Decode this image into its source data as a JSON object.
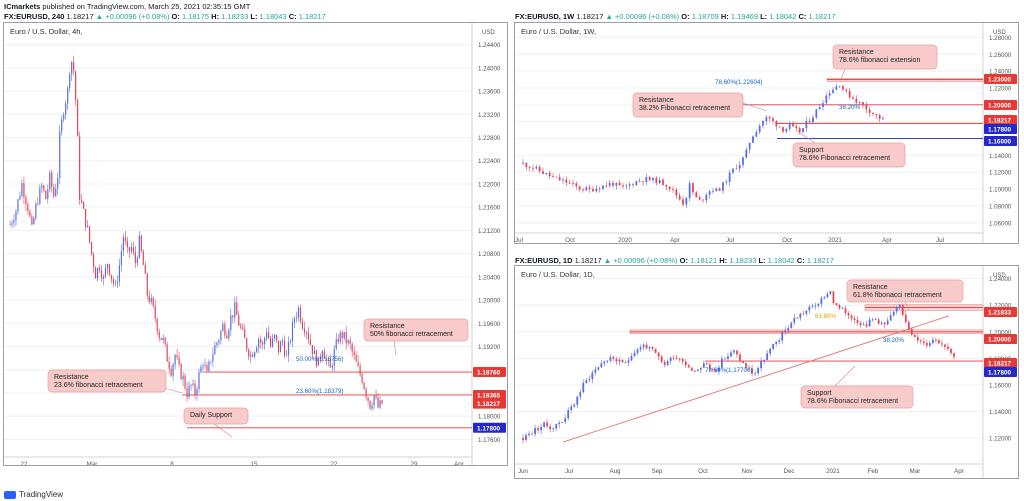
{
  "header": {
    "publisher": "ICmarkets",
    "published_text": "published on TradingView.com, March 25, 2021 02:35:15 GMT"
  },
  "footer": {
    "brand": "TradingView"
  },
  "colors": {
    "bull": "#5b6ee1",
    "bear": "#e0475b",
    "resistance_line": "#e53935",
    "support_line": "#1a26c7",
    "zone": "#f6c9c9",
    "callout_bg": "#f8caca",
    "callout_border": "#e9a0a0",
    "trendline": "#e57373",
    "grid": "#eef0f3"
  },
  "charts": [
    {
      "id": "h4",
      "symbol_line": {
        "symbol": "FX:EURUSD",
        "timeframe": "240",
        "o_label": "O:",
        "o": "1.18175",
        "change": "▲ +0.00096 (+0.08%)",
        "h_label": "H:",
        "h": "1.18233",
        "l_label": "L:",
        "l": "1.18043",
        "c_label": "C:",
        "c": "1.18217",
        "prefix": "1.18217"
      },
      "title": "Euro / U.S. Dollar, 4h,",
      "currency_label": "USD",
      "y_ticks": [
        "1.24400",
        "1.24000",
        "1.23600",
        "1.23200",
        "1.22800",
        "1.22400",
        "1.22000",
        "1.21600",
        "1.21200",
        "1.20800",
        "1.20400",
        "1.20000",
        "1.19600",
        "1.19200",
        "1.18800",
        "1.18400",
        "1.18000",
        "1.17600"
      ],
      "x_ticks": [
        "22",
        "Mar",
        "8",
        "15",
        "22",
        "29",
        "Apr"
      ],
      "price_tags": [
        {
          "text": "1.18760",
          "kind": "resistance"
        },
        {
          "text": "1.18365",
          "kind": "resistance"
        },
        {
          "text": "1.18217",
          "kind": "last"
        },
        {
          "text": "1.17800",
          "kind": "support"
        }
      ],
      "fib_labels": [
        "50.00%(1.18756)",
        "23.60%(1.18379)"
      ],
      "callouts": [
        {
          "lines": [
            "Resistance",
            "50% fibonacci retracement"
          ]
        },
        {
          "lines": [
            "Resistance",
            "23.6% fibonacci retracement"
          ]
        },
        {
          "lines": [
            "Daily Support"
          ]
        }
      ]
    },
    {
      "id": "w1",
      "symbol_line": {
        "symbol": "FX:EURUSD",
        "timeframe": "1W",
        "o_label": "O:",
        "o": "1.18709",
        "change": "▲ +0.00096 (+0.08%)",
        "h_label": "H:",
        "h": "1.19469",
        "l_label": "L:",
        "l": "1.18042",
        "c_label": "C:",
        "c": "1.18217",
        "prefix": "1.18217"
      },
      "title": "Euro / U.S. Dollar, 1W,",
      "currency_label": "USD",
      "y_ticks": [
        "1.28000",
        "1.26000",
        "1.24000",
        "1.22000",
        "1.20000",
        "1.18000",
        "1.16000",
        "1.14000",
        "1.12000",
        "1.10000",
        "1.08000",
        "1.06000"
      ],
      "x_ticks": [
        "Jul",
        "Oct",
        "2020",
        "Apr",
        "Jul",
        "Oct",
        "2021",
        "Apr",
        "Jul"
      ],
      "price_tags": [
        {
          "text": "1.23000",
          "kind": "resistance"
        },
        {
          "text": "1.20000",
          "kind": "resistance"
        },
        {
          "text": "1.18217",
          "kind": "last"
        },
        {
          "text": "1.17800",
          "kind": "support"
        },
        {
          "text": "1.16000",
          "kind": "support"
        }
      ],
      "fib_labels": [
        "78.60%(1.22604)",
        "38.20%"
      ],
      "callouts": [
        {
          "lines": [
            "Resistance",
            "78.6% fibonacci extension"
          ]
        },
        {
          "lines": [
            "Resistance",
            "38.2% Fibonacci retracement"
          ]
        },
        {
          "lines": [
            "Support",
            "78.6% Fibonacci retracement"
          ]
        }
      ]
    },
    {
      "id": "d1",
      "symbol_line": {
        "symbol": "FX:EURUSD",
        "timeframe": "1D",
        "o_label": "O:",
        "o": "1.18121",
        "change": "▲ +0.00096 (+0.08%)",
        "h_label": "H:",
        "h": "1.18233",
        "l_label": "L:",
        "l": "1.18042",
        "c_label": "C:",
        "c": "1.18217",
        "prefix": "1.18217"
      },
      "title": "Euro / U.S. Dollar, 1D,",
      "currency_label": "USD",
      "y_ticks": [
        "1.24000",
        "1.22000",
        "1.20000",
        "1.18000",
        "1.16000",
        "1.14000",
        "1.12000"
      ],
      "x_ticks": [
        "Jun",
        "Jul",
        "Aug",
        "Sep",
        "Oct",
        "Nov",
        "Dec",
        "2021",
        "Feb",
        "Mar",
        "Apr"
      ],
      "price_tags": [
        {
          "text": "1.21833",
          "kind": "resistance"
        },
        {
          "text": "1.20000",
          "kind": "resistance"
        },
        {
          "text": "1.18217",
          "kind": "last"
        },
        {
          "text": "1.17800",
          "kind": "support"
        }
      ],
      "fib_labels": [
        "61.80%",
        "38.20%",
        "78.60%(1.17706)"
      ],
      "callouts": [
        {
          "lines": [
            "Resistance",
            "61.8% fibonacci retracement"
          ]
        },
        {
          "lines": [
            "Support",
            "78.6% Fibonacci retracement"
          ]
        }
      ]
    }
  ],
  "chart_data": [
    {
      "type": "candlestick",
      "id": "h4",
      "title": "Euro / U.S. Dollar, 4h,",
      "y_min": 1.174,
      "y_max": 1.246,
      "path": [
        [
          0,
          1.213
        ],
        [
          6,
          1.2155
        ],
        [
          12,
          1.22
        ],
        [
          18,
          1.216
        ],
        [
          22,
          1.212
        ],
        [
          27,
          1.217
        ],
        [
          32,
          1.2195
        ],
        [
          36,
          1.2175
        ],
        [
          40,
          1.221
        ],
        [
          44,
          1.218
        ],
        [
          48,
          1.2215
        ],
        [
          50,
          1.228
        ],
        [
          54,
          1.233
        ],
        [
          58,
          1.236
        ],
        [
          61,
          1.242
        ],
        [
          64,
          1.2395
        ],
        [
          67,
          1.232
        ],
        [
          70,
          1.218
        ],
        [
          74,
          1.215
        ],
        [
          78,
          1.212
        ],
        [
          82,
          1.208
        ],
        [
          86,
          1.2045
        ],
        [
          90,
          1.206
        ],
        [
          94,
          1.2035
        ],
        [
          98,
          1.2065
        ],
        [
          102,
          1.204
        ],
        [
          106,
          1.202
        ],
        [
          110,
          1.206
        ],
        [
          114,
          1.211
        ],
        [
          118,
          1.208
        ],
        [
          122,
          1.209
        ],
        [
          126,
          1.2065
        ],
        [
          130,
          1.21
        ],
        [
          134,
          1.206
        ],
        [
          138,
          1.201
        ],
        [
          142,
          1.1995
        ],
        [
          146,
          1.197
        ],
        [
          150,
          1.194
        ],
        [
          154,
          1.193
        ],
        [
          158,
          1.19
        ],
        [
          162,
          1.188
        ],
        [
          166,
          1.1905
        ],
        [
          170,
          1.188
        ],
        [
          174,
          1.1865
        ],
        [
          178,
          1.184
        ],
        [
          182,
          1.1852
        ],
        [
          186,
          1.184
        ],
        [
          190,
          1.187
        ],
        [
          194,
          1.1895
        ],
        [
          198,
          1.187
        ],
        [
          202,
          1.19
        ],
        [
          206,
          1.192
        ],
        [
          210,
          1.1935
        ],
        [
          214,
          1.1955
        ],
        [
          218,
          1.1945
        ],
        [
          222,
          1.197
        ],
        [
          226,
          1.1985
        ],
        [
          230,
          1.196
        ],
        [
          234,
          1.194
        ],
        [
          238,
          1.192
        ],
        [
          242,
          1.1905
        ],
        [
          246,
          1.1918
        ],
        [
          250,
          1.1935
        ],
        [
          254,
          1.192
        ],
        [
          258,
          1.195
        ],
        [
          262,
          1.192
        ],
        [
          266,
          1.1935
        ],
        [
          270,
          1.1915
        ],
        [
          274,
          1.193
        ],
        [
          278,
          1.19
        ],
        [
          282,
          1.1935
        ],
        [
          286,
          1.197
        ],
        [
          290,
          1.1985
        ],
        [
          294,
          1.196
        ],
        [
          298,
          1.195
        ],
        [
          302,
          1.1925
        ],
        [
          306,
          1.1905
        ],
        [
          310,
          1.189
        ],
        [
          314,
          1.192
        ],
        [
          318,
          1.1895
        ],
        [
          322,
          1.188
        ],
        [
          326,
          1.191
        ],
        [
          330,
          1.1935
        ],
        [
          334,
          1.194
        ],
        [
          338,
          1.193
        ],
        [
          342,
          1.192
        ],
        [
          346,
          1.19
        ],
        [
          350,
          1.188
        ],
        [
          354,
          1.1865
        ],
        [
          358,
          1.184
        ],
        [
          362,
          1.182
        ],
        [
          366,
          1.1835
        ],
        [
          370,
          1.1815
        ],
        [
          374,
          1.1822
        ]
      ],
      "levels": [
        1.1876,
        1.18365,
        1.178
      ]
    },
    {
      "type": "candlestick",
      "id": "w1",
      "title": "Euro / U.S. Dollar, 1W,",
      "y_min": 1.055,
      "y_max": 1.29,
      "path": [
        [
          0,
          1.13
        ],
        [
          10,
          1.125
        ],
        [
          20,
          1.118
        ],
        [
          30,
          1.112
        ],
        [
          40,
          1.108
        ],
        [
          50,
          1.101
        ],
        [
          60,
          1.099
        ],
        [
          70,
          1.103
        ],
        [
          80,
          1.107
        ],
        [
          90,
          1.101
        ],
        [
          100,
          1.108
        ],
        [
          110,
          1.112
        ],
        [
          120,
          1.11
        ],
        [
          130,
          1.105
        ],
        [
          140,
          1.09
        ],
        [
          145,
          1.082
        ],
        [
          150,
          1.105
        ],
        [
          155,
          1.09
        ],
        [
          160,
          1.085
        ],
        [
          165,
          1.095
        ],
        [
          170,
          1.1
        ],
        [
          175,
          1.098
        ],
        [
          180,
          1.105
        ],
        [
          185,
          1.115
        ],
        [
          190,
          1.125
        ],
        [
          195,
          1.13
        ],
        [
          200,
          1.14
        ],
        [
          205,
          1.16
        ],
        [
          210,
          1.17
        ],
        [
          215,
          1.18
        ],
        [
          220,
          1.185
        ],
        [
          225,
          1.18
        ],
        [
          230,
          1.175
        ],
        [
          235,
          1.17
        ],
        [
          240,
          1.175
        ],
        [
          245,
          1.17
        ],
        [
          250,
          1.168
        ],
        [
          255,
          1.178
        ],
        [
          260,
          1.185
        ],
        [
          265,
          1.195
        ],
        [
          270,
          1.205
        ],
        [
          275,
          1.215
        ],
        [
          280,
          1.22
        ],
        [
          285,
          1.225
        ],
        [
          290,
          1.215
        ],
        [
          295,
          1.21
        ],
        [
          300,
          1.205
        ],
        [
          305,
          1.2
        ],
        [
          310,
          1.195
        ],
        [
          315,
          1.19
        ],
        [
          320,
          1.185
        ],
        [
          324,
          1.1822
        ]
      ],
      "levels": [
        1.23,
        1.2,
        1.178,
        1.16
      ]
    },
    {
      "type": "candlestick",
      "id": "d1",
      "title": "Euro / U.S. Dollar, 1D,",
      "y_min": 1.105,
      "y_max": 1.245,
      "path": [
        [
          0,
          1.12
        ],
        [
          10,
          1.125
        ],
        [
          20,
          1.13
        ],
        [
          30,
          1.128
        ],
        [
          40,
          1.134
        ],
        [
          50,
          1.145
        ],
        [
          60,
          1.16
        ],
        [
          70,
          1.17
        ],
        [
          80,
          1.178
        ],
        [
          90,
          1.18
        ],
        [
          100,
          1.175
        ],
        [
          110,
          1.185
        ],
        [
          120,
          1.19
        ],
        [
          130,
          1.185
        ],
        [
          140,
          1.175
        ],
        [
          150,
          1.182
        ],
        [
          160,
          1.178
        ],
        [
          170,
          1.17
        ],
        [
          180,
          1.176
        ],
        [
          190,
          1.17
        ],
        [
          200,
          1.18
        ],
        [
          210,
          1.185
        ],
        [
          220,
          1.175
        ],
        [
          230,
          1.168
        ],
        [
          240,
          1.18
        ],
        [
          250,
          1.19
        ],
        [
          260,
          1.2
        ],
        [
          270,
          1.21
        ],
        [
          280,
          1.215
        ],
        [
          290,
          1.22
        ],
        [
          300,
          1.225
        ],
        [
          305,
          1.233
        ],
        [
          310,
          1.22
        ],
        [
          320,
          1.215
        ],
        [
          330,
          1.21
        ],
        [
          340,
          1.205
        ],
        [
          350,
          1.21
        ],
        [
          360,
          1.205
        ],
        [
          370,
          1.215
        ],
        [
          375,
          1.22
        ],
        [
          380,
          1.21
        ],
        [
          390,
          1.195
        ],
        [
          400,
          1.19
        ],
        [
          410,
          1.195
        ],
        [
          420,
          1.19
        ],
        [
          430,
          1.1822
        ]
      ],
      "levels": [
        1.21833,
        1.2,
        1.178
      ]
    }
  ]
}
